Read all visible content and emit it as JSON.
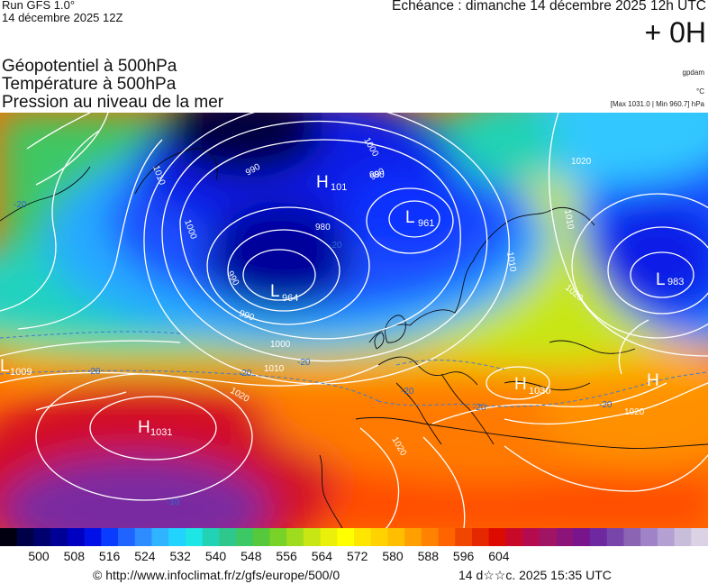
{
  "header": {
    "run_line1": "Run GFS 1.0°",
    "run_line2": "14 décembre 2025 12Z",
    "echeance": "Echéance : dimanche 14 décembre 2025 12h UTC",
    "lead_time": "+ 0H"
  },
  "titles": {
    "line1": "Géopotentiel à 500hPa",
    "line2": "Température à 500hPa",
    "line3": "Pression au niveau de la mer"
  },
  "units": {
    "geopotential": "gpdam",
    "temperature": "°C",
    "pressure_range": "[Max 1031.0 | Min 960.7] hPa"
  },
  "map": {
    "centers": [
      {
        "type": "H",
        "value": "101",
        "label": "H"
      },
      {
        "type": "L",
        "value": "961",
        "label": "L"
      },
      {
        "type": "L",
        "value": "964",
        "label": "L"
      },
      {
        "type": "L",
        "value": "983",
        "label": "L"
      },
      {
        "type": "L",
        "value": "1009",
        "label": "L"
      },
      {
        "type": "H",
        "value": "1031",
        "label": "H"
      },
      {
        "type": "H",
        "value": "1030",
        "label": "H"
      },
      {
        "type": "H",
        "value": "",
        "label": "H"
      }
    ],
    "isobar_labels": [
      "1010",
      "1000",
      "990",
      "980",
      "980",
      "990",
      "1000",
      "990",
      "1010",
      "1020",
      "1020",
      "1010",
      "1020",
      "1020",
      "1000",
      "990",
      "1010",
      "1020"
    ],
    "temperature_labels": [
      "-20",
      "-20",
      "-20",
      "-20",
      "-20",
      "-10",
      "-20",
      "-20",
      "-20"
    ]
  },
  "colorbar": {
    "colors": [
      "#000010",
      "#000048",
      "#00006e",
      "#000096",
      "#0000c0",
      "#0010e6",
      "#0a3cff",
      "#1f64ff",
      "#2d8cff",
      "#30b4ff",
      "#22d2ff",
      "#1ee6e6",
      "#22d2b4",
      "#2ec88c",
      "#3cc864",
      "#55c83c",
      "#78d228",
      "#a0dc1e",
      "#c8e614",
      "#eaf00a",
      "#ffff00",
      "#ffe600",
      "#ffd200",
      "#ffbe00",
      "#ffa000",
      "#ff8200",
      "#ff6400",
      "#f04600",
      "#e62800",
      "#dc0a00",
      "#c80a28",
      "#b40a50",
      "#a01464",
      "#8c1478",
      "#78148c",
      "#6e28a0",
      "#7846aa",
      "#8c64b4",
      "#a082c8",
      "#b4a0d2",
      "#c8bedc",
      "#dcd2e6"
    ],
    "ticks": [
      "500",
      "508",
      "516",
      "524",
      "532",
      "540",
      "548",
      "556",
      "564",
      "572",
      "580",
      "588",
      "596",
      "604"
    ]
  },
  "footer": {
    "url": "© http://www.infoclimat.fr/z/gfs/europe/500/0",
    "date": "14 d☆☆c. 2025 15:35 UTC"
  }
}
